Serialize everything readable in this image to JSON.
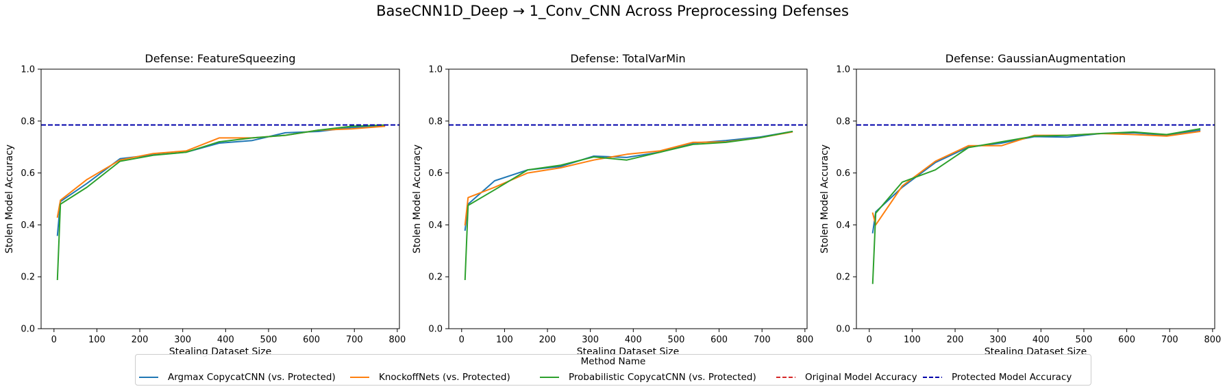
{
  "suptitle": "BaseCNN1D_Deep → 1_Conv_CNN Across Preprocessing Defenses",
  "legend": {
    "title": "Method Name",
    "entries": [
      {
        "label": "Argmax CopycatCNN (vs. Protected)",
        "color": "#1f77b4",
        "style": "solid"
      },
      {
        "label": "KnockoffNets (vs. Protected)",
        "color": "#ff7f0e",
        "style": "solid"
      },
      {
        "label": "Probabilistic CopycatCNN (vs. Protected)",
        "color": "#2ca02c",
        "style": "solid"
      },
      {
        "label": "Original Model Accuracy",
        "color": "#d62728",
        "style": "dashed"
      },
      {
        "label": "Protected Model Accuracy",
        "color": "#0000aa",
        "style": "dashed"
      }
    ]
  },
  "chart_data": [
    {
      "type": "line",
      "title": "Defense: FeatureSqueezing",
      "xlabel": "Stealing Dataset Size",
      "ylabel": "Stolen Model Accuracy",
      "xlim": [
        -30,
        805
      ],
      "ylim": [
        0,
        1
      ],
      "xticks": [
        0,
        100,
        200,
        300,
        400,
        500,
        600,
        700,
        800
      ],
      "yticks": [
        0.0,
        0.2,
        0.4,
        0.6,
        0.8,
        1.0
      ],
      "grid": false,
      "hlines": [
        {
          "name": "Protected Model Accuracy",
          "y": 0.785,
          "color": "#0000aa"
        }
      ],
      "series": [
        {
          "name": "Argmax CopycatCNN (vs. Protected)",
          "color": "#1f77b4",
          "x": [
            8,
            15,
            77,
            154,
            231,
            308,
            385,
            462,
            539,
            616,
            693,
            770
          ],
          "y": [
            0.36,
            0.49,
            0.56,
            0.655,
            0.67,
            0.68,
            0.715,
            0.725,
            0.755,
            0.76,
            0.775,
            0.78
          ]
        },
        {
          "name": "KnockoffNets (vs. Protected)",
          "color": "#ff7f0e",
          "x": [
            8,
            15,
            77,
            154,
            231,
            308,
            385,
            462,
            539,
            616,
            693,
            770
          ],
          "y": [
            0.43,
            0.495,
            0.575,
            0.65,
            0.675,
            0.685,
            0.735,
            0.735,
            0.745,
            0.765,
            0.77,
            0.78
          ]
        },
        {
          "name": "Probabilistic CopycatCNN (vs. Protected)",
          "color": "#2ca02c",
          "x": [
            8,
            15,
            77,
            154,
            231,
            308,
            385,
            462,
            539,
            616,
            693,
            770
          ],
          "y": [
            0.19,
            0.48,
            0.545,
            0.645,
            0.668,
            0.68,
            0.72,
            0.735,
            0.745,
            0.765,
            0.78,
            0.785
          ]
        }
      ]
    },
    {
      "type": "line",
      "title": "Defense: TotalVarMin",
      "xlabel": "Stealing Dataset Size",
      "ylabel": "Stolen Model Accuracy",
      "xlim": [
        -30,
        805
      ],
      "ylim": [
        0,
        1
      ],
      "xticks": [
        0,
        100,
        200,
        300,
        400,
        500,
        600,
        700,
        800
      ],
      "yticks": [
        0.0,
        0.2,
        0.4,
        0.6,
        0.8,
        1.0
      ],
      "grid": false,
      "hlines": [
        {
          "name": "Protected Model Accuracy",
          "y": 0.785,
          "color": "#0000aa"
        }
      ],
      "series": [
        {
          "name": "Argmax CopycatCNN (vs. Protected)",
          "color": "#1f77b4",
          "x": [
            8,
            15,
            77,
            154,
            231,
            308,
            385,
            462,
            539,
            616,
            693,
            770
          ],
          "y": [
            0.38,
            0.48,
            0.57,
            0.612,
            0.625,
            0.665,
            0.66,
            0.68,
            0.715,
            0.725,
            0.738,
            0.76
          ]
        },
        {
          "name": "KnockoffNets (vs. Protected)",
          "color": "#ff7f0e",
          "x": [
            8,
            15,
            77,
            154,
            231,
            308,
            385,
            462,
            539,
            616,
            693,
            770
          ],
          "y": [
            0.4,
            0.505,
            0.545,
            0.6,
            0.62,
            0.65,
            0.672,
            0.685,
            0.718,
            0.72,
            0.735,
            0.758
          ]
        },
        {
          "name": "Probabilistic CopycatCNN (vs. Protected)",
          "color": "#2ca02c",
          "x": [
            8,
            15,
            77,
            154,
            231,
            308,
            385,
            462,
            539,
            616,
            693,
            770
          ],
          "y": [
            0.19,
            0.475,
            0.535,
            0.612,
            0.63,
            0.662,
            0.65,
            0.68,
            0.71,
            0.718,
            0.735,
            0.76
          ]
        }
      ]
    },
    {
      "type": "line",
      "title": "Defense: GaussianAugmentation",
      "xlabel": "Stealing Dataset Size",
      "ylabel": "Stolen Model Accuracy",
      "xlim": [
        -30,
        805
      ],
      "ylim": [
        0,
        1
      ],
      "xticks": [
        0,
        100,
        200,
        300,
        400,
        500,
        600,
        700,
        800
      ],
      "yticks": [
        0.0,
        0.2,
        0.4,
        0.6,
        0.8,
        1.0
      ],
      "grid": false,
      "hlines": [
        {
          "name": "Protected Model Accuracy",
          "y": 0.785,
          "color": "#0000aa"
        }
      ],
      "series": [
        {
          "name": "Argmax CopycatCNN (vs. Protected)",
          "color": "#1f77b4",
          "x": [
            8,
            15,
            77,
            154,
            231,
            308,
            385,
            462,
            539,
            616,
            693,
            770
          ],
          "y": [
            0.37,
            0.45,
            0.545,
            0.64,
            0.7,
            0.715,
            0.74,
            0.738,
            0.752,
            0.755,
            0.745,
            0.765
          ]
        },
        {
          "name": "KnockoffNets (vs. Protected)",
          "color": "#ff7f0e",
          "x": [
            8,
            15,
            77,
            154,
            231,
            308,
            385,
            462,
            539,
            616,
            693,
            770
          ],
          "y": [
            0.445,
            0.4,
            0.55,
            0.645,
            0.705,
            0.705,
            0.745,
            0.745,
            0.752,
            0.748,
            0.742,
            0.76
          ]
        },
        {
          "name": "Probabilistic CopycatCNN (vs. Protected)",
          "color": "#2ca02c",
          "x": [
            8,
            15,
            77,
            154,
            231,
            308,
            385,
            462,
            539,
            616,
            693,
            770
          ],
          "y": [
            0.175,
            0.445,
            0.565,
            0.612,
            0.698,
            0.72,
            0.742,
            0.745,
            0.752,
            0.758,
            0.748,
            0.77
          ]
        }
      ]
    }
  ]
}
